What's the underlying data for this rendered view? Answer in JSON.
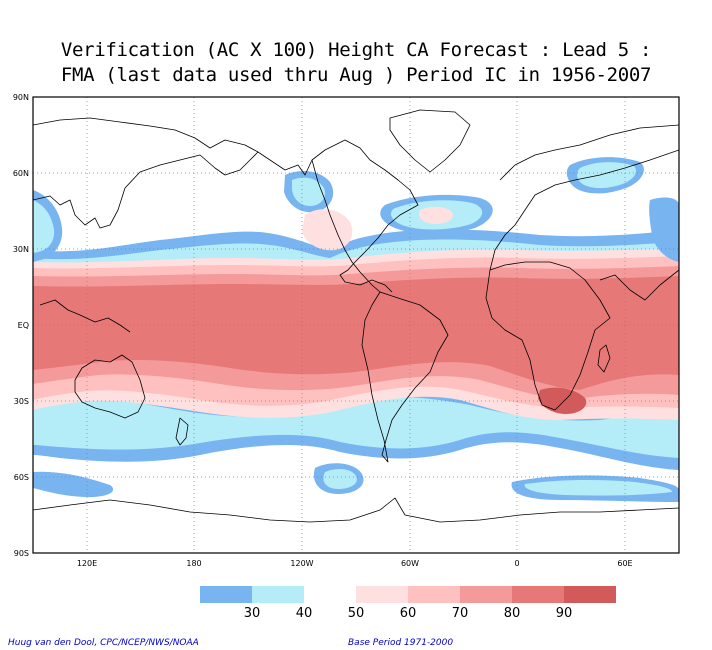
{
  "title": {
    "line1": "Verification (AC X 100) Height CA Forecast : Lead 5 :",
    "line2": "FMA (last data used thru Aug ) Period IC in 1956-2007"
  },
  "map": {
    "lat_labels": [
      "90N",
      "60N",
      "30N",
      "EQ",
      "30S",
      "60S",
      "90S"
    ],
    "lon_labels": [
      "120E",
      "180",
      "120W",
      "60W",
      "0",
      "60E"
    ],
    "lon_range": "60E to 60E (centered on 180)",
    "grid": "dotted"
  },
  "legend": {
    "levels": [
      "30",
      "40",
      "50",
      "60",
      "70",
      "80",
      "90"
    ],
    "colors": [
      "#78b4f0",
      "#b4ecf8",
      "#ffffff",
      "#ffe0e0",
      "#ffc0c0",
      "#f49a9a",
      "#e67878",
      "#d25a5a"
    ]
  },
  "colors": {
    "c30": "#78b4f0",
    "c40": "#b4ecf8",
    "c60": "#ffe0e0",
    "c70": "#ffc0c0",
    "c80": "#f49a9a",
    "c90": "#e67878",
    "credit_text": "#0000cc"
  },
  "credits": {
    "left": "Huug van den Dool, CPC/NCEP/NWS/NOAA",
    "right": "Base Period 1971-2000"
  }
}
